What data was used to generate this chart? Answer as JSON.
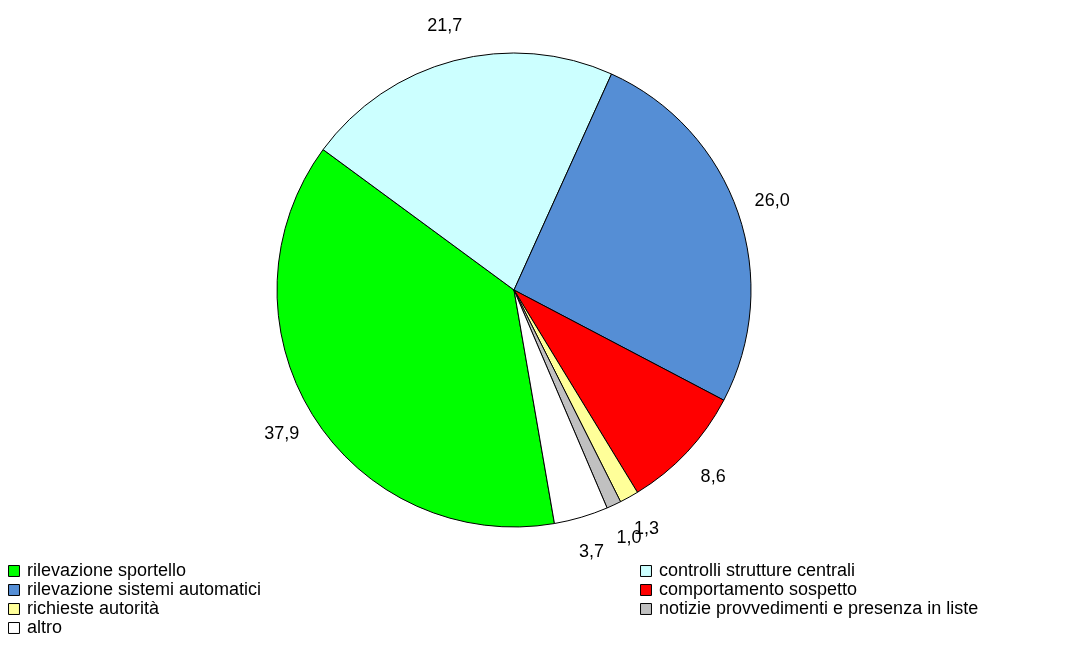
{
  "chart_data": {
    "type": "pie",
    "categories": [
      "rilevazione sportello",
      "controlli strutture centrali",
      "rilevazione sistemi automatici",
      "comportamento sospetto",
      "richieste autorità",
      "notizie provvedimenti e presenza in liste",
      "altro"
    ],
    "values": [
      37.9,
      21.7,
      26.0,
      8.6,
      1.3,
      1.0,
      3.7
    ],
    "colors": [
      "#00ff00",
      "#ccffff",
      "#558ed5",
      "#ff0000",
      "#ffff99",
      "#c0c0c0",
      "#ffffff"
    ],
    "value_labels": [
      "37,9",
      "21,7",
      "26,0",
      "8,6",
      "1,3",
      "1,0",
      "3,7"
    ],
    "legend": "bottom left"
  }
}
